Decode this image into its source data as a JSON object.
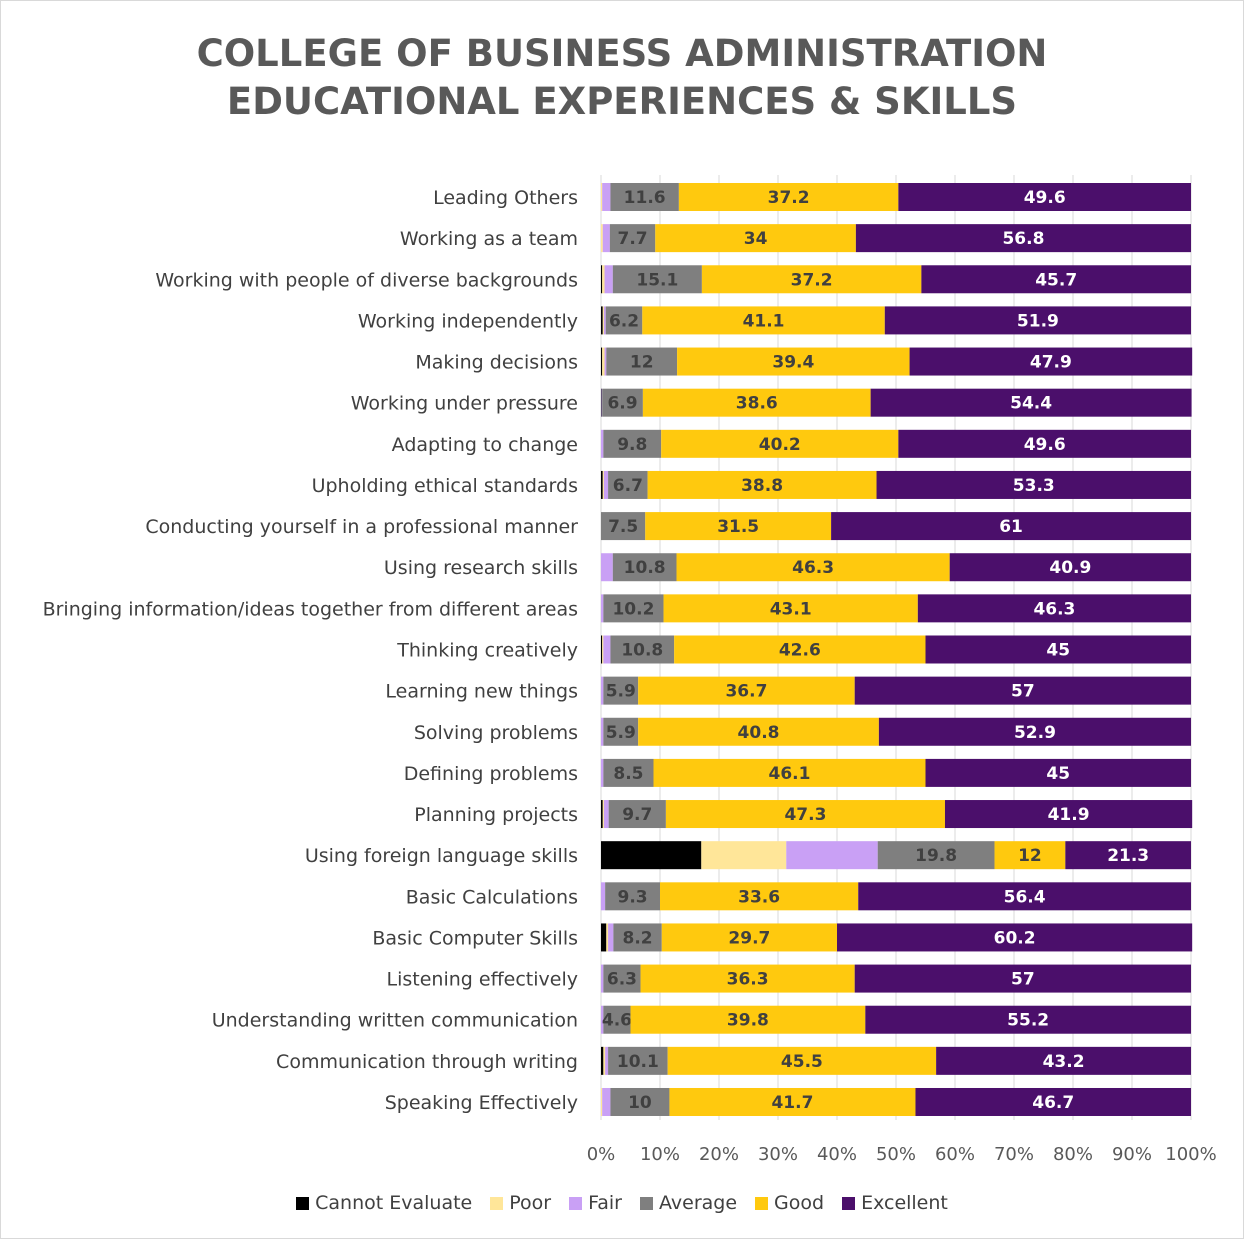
{
  "chart_data": {
    "type": "bar",
    "orientation": "horizontal",
    "stacked": true,
    "title_lines": [
      "COLLEGE OF BUSINESS ADMINISTRATION",
      "EDUCATIONAL EXPERIENCES & SKILLS"
    ],
    "categories": [
      "Leading Others",
      "Working as a team",
      "Working with people of diverse backgrounds",
      "Working independently",
      "Making decisions",
      "Working under pressure",
      "Adapting to change",
      "Upholding ethical standards",
      "Conducting yourself in a professional manner",
      "Using research skills",
      "Bringing information/ideas together from different areas",
      "Thinking creatively",
      "Learning new things",
      "Solving problems",
      "Defining problems",
      "Planning projects",
      "Using foreign language skills",
      "Basic Calculations",
      "Basic Computer Skills",
      "Listening effectively",
      "Understanding written communication",
      "Communication through writing",
      "Speaking Effectively"
    ],
    "series": [
      {
        "name": "Cannot Evaluate",
        "color": "#000000",
        "label_color": "#000000",
        "show_labels": false,
        "values": [
          0,
          0,
          0.2,
          0.3,
          0.2,
          0.1,
          0,
          0.3,
          0,
          0,
          0,
          0.2,
          0,
          0,
          0,
          0.3,
          17.0,
          0,
          0.9,
          0,
          0,
          0.4,
          0
        ]
      },
      {
        "name": "Poor",
        "color": "#ffe699",
        "label_color": "#404040",
        "show_labels": false,
        "values": [
          0.2,
          0.3,
          0.4,
          0.2,
          0.4,
          0,
          0,
          0.2,
          0,
          0,
          0,
          0.2,
          0,
          0,
          0,
          0.2,
          14.4,
          0,
          0.3,
          0,
          0,
          0.3,
          0.2
        ]
      },
      {
        "name": "Fair",
        "color": "#c9a0f5",
        "label_color": "#404040",
        "show_labels": false,
        "values": [
          1.4,
          1.2,
          1.4,
          0.3,
          0.3,
          0.1,
          0.4,
          0.7,
          0,
          2.0,
          0.4,
          1.2,
          0.4,
          0.4,
          0.4,
          0.8,
          15.5,
          0.7,
          0.9,
          0.4,
          0.4,
          0.5,
          1.4
        ]
      },
      {
        "name": "Average",
        "color": "#7f7f7f",
        "label_color": "#404040",
        "show_labels": true,
        "values": [
          11.6,
          7.7,
          15.1,
          6.2,
          12,
          6.9,
          9.8,
          6.7,
          7.5,
          10.8,
          10.2,
          10.8,
          5.9,
          5.9,
          8.5,
          9.7,
          19.8,
          9.3,
          8.2,
          6.3,
          4.6,
          10.1,
          10
        ]
      },
      {
        "name": "Good",
        "color": "#ffc90e",
        "label_color": "#404040",
        "show_labels": true,
        "values": [
          37.2,
          34,
          37.2,
          41.1,
          39.4,
          38.6,
          40.2,
          38.8,
          31.5,
          46.3,
          43.1,
          42.6,
          36.7,
          40.8,
          46.1,
          47.3,
          12,
          33.6,
          29.7,
          36.3,
          39.8,
          45.5,
          41.7
        ]
      },
      {
        "name": "Excellent",
        "color": "#4b0f6b",
        "label_color": "#ffffff",
        "show_labels": true,
        "values": [
          49.6,
          56.8,
          45.7,
          51.9,
          47.9,
          54.4,
          49.6,
          53.3,
          61,
          40.9,
          46.3,
          45,
          57,
          52.9,
          45,
          41.9,
          21.3,
          56.4,
          60.2,
          57,
          55.2,
          43.2,
          46.7
        ]
      }
    ],
    "xlim": [
      0,
      100
    ],
    "x_ticks": [
      "0%",
      "10%",
      "20%",
      "30%",
      "40%",
      "50%",
      "60%",
      "70%",
      "80%",
      "90%",
      "100%"
    ],
    "grid": true,
    "legend_position": "bottom"
  }
}
